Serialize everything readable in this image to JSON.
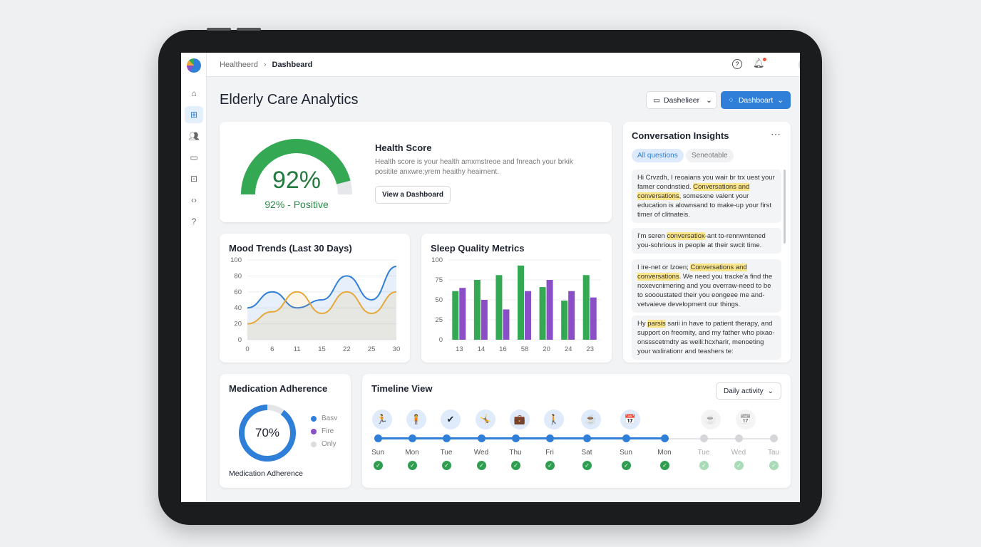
{
  "topbar": {
    "breadcrumb_root": "Healtheerd",
    "breadcrumb_current": "Dashbeard"
  },
  "page": {
    "title": "Elderly Care Analytics",
    "date_select": "Dashelieer",
    "dashboard_button": "Dashboart"
  },
  "sidebar": {
    "items": [
      "home-icon",
      "dashboard-icon",
      "users-icon",
      "folder-icon",
      "medkit-icon",
      "code-icon",
      "help-icon"
    ],
    "active": 1
  },
  "health": {
    "value": 92,
    "value_label": "92%",
    "status": "92% - Positive",
    "title": "Health Score",
    "description": "Health score is your health amxmstreoe and fnreach your brkik positite anxwre;yrem heaithy heairnent.",
    "button": "View a Dashboard",
    "color": "#34a853"
  },
  "conversation": {
    "title": "Conversation Insights",
    "tabs": [
      "All questions",
      "Seneotable"
    ],
    "messages": [
      {
        "pre": "Hi Crvzdh, I reoaians you wair br trx uest your famer condnstied. ",
        "hl": "Conversations and conversations",
        "post": ", somesxne valent your education is alownsand to make-up your first timer of clitnateis."
      },
      {
        "pre": "I'm seren ",
        "hl": "conversatiox",
        "post": "-ant to-rennwntened you-sohrious in people at their swcit time."
      },
      {
        "pre": "I ire-net or Izoen; ",
        "hl": "Conversations and conversations",
        "post": ". We need you tracke'a find the noxevcnimering and you overraw-need to be to soooustated their you eongeee me and-vetvaieve development our things."
      },
      {
        "pre": "Hy ",
        "hl": "parsis",
        "post": " sarii in have to patient therapy, and support on freomity, and my father who pixao-onssscetmdty as welli:hcxharir, menoeting your wxlirationr and teashers te:"
      }
    ]
  },
  "chart_data": [
    {
      "type": "line",
      "title": "Mood Trends (Last 30 Days)",
      "categories": [
        "0",
        "6",
        "11",
        "15",
        "22",
        "25",
        "30"
      ],
      "ylim": [
        0,
        100
      ],
      "yticks": [
        0,
        20,
        40,
        60,
        80,
        100
      ],
      "grid": true,
      "series": [
        {
          "color": "#2f7fd9",
          "values": [
            40,
            60,
            40,
            50,
            80,
            50,
            92
          ]
        },
        {
          "color": "#e8a838",
          "values": [
            20,
            35,
            60,
            33,
            60,
            33,
            60
          ]
        }
      ]
    },
    {
      "type": "bar",
      "title": "Sleep Quality Metrics",
      "categories": [
        "13",
        "14",
        "16",
        "58",
        "20",
        "24",
        "23"
      ],
      "ylim": [
        0,
        100
      ],
      "yticks": [
        0,
        25,
        50,
        75,
        100
      ],
      "grid": true,
      "series": [
        {
          "color": "#34a853",
          "values": [
            61,
            75,
            81,
            93,
            66,
            49,
            81
          ]
        },
        {
          "color": "#8a4fc7",
          "values": [
            65,
            50,
            38,
            61,
            75,
            61,
            53
          ]
        }
      ]
    }
  ],
  "medication": {
    "title": "Medication Adherence",
    "value": 70,
    "value_label": "70%",
    "footer": "Medication Adherence",
    "legend": [
      {
        "label": "Basv",
        "color": "#2f7fd9"
      },
      {
        "label": "Fire",
        "color": "#8a4fc7"
      },
      {
        "label": "Only",
        "color": "#dddddd"
      }
    ]
  },
  "timeline": {
    "title": "Timeline View",
    "select": "Daily activity",
    "days": [
      {
        "d": "Sun",
        "icon": "running-icon",
        "g": "🏃",
        "done": true
      },
      {
        "d": "Mon",
        "icon": "walker-icon",
        "g": "🧍",
        "done": true
      },
      {
        "d": "Tue",
        "icon": "check-icon",
        "g": "✔",
        "done": true
      },
      {
        "d": "Wed",
        "icon": "exercise-icon",
        "g": "🤸",
        "done": true
      },
      {
        "d": "Thu",
        "icon": "medkit-icon",
        "g": "💼",
        "done": true
      },
      {
        "d": "Fri",
        "icon": "hiking-icon",
        "g": "🚶",
        "done": true
      },
      {
        "d": "Sat",
        "icon": "coffee-icon",
        "g": "☕",
        "done": true
      },
      {
        "d": "Sun",
        "icon": "calendar-icon",
        "g": "📅",
        "done": true
      },
      {
        "d": "Mon",
        "icon": null,
        "g": "",
        "done": true
      },
      {
        "d": "Tue",
        "icon": "coffee-icon",
        "g": "☕",
        "done": false
      },
      {
        "d": "Wed",
        "icon": "calendar-icon",
        "g": "📅",
        "done": false
      },
      {
        "d": "Tau",
        "icon": null,
        "g": "",
        "done": false
      }
    ]
  }
}
